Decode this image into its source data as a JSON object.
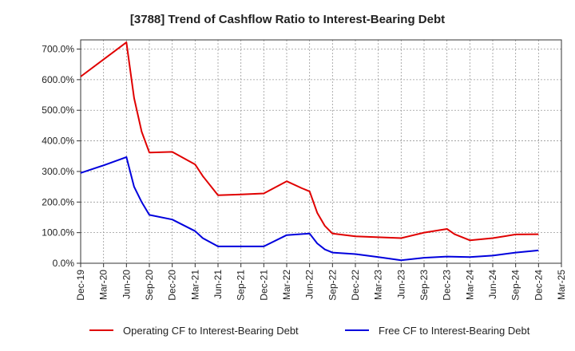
{
  "chart_data": {
    "type": "line",
    "title": "[3788]  Trend of Cashflow Ratio to Interest-Bearing Debt",
    "xlabel": "",
    "ylabel": "",
    "x_ticks": [
      "Dec-19",
      "Mar-20",
      "Jun-20",
      "Sep-20",
      "Dec-20",
      "Mar-21",
      "Jun-21",
      "Sep-21",
      "Dec-21",
      "Mar-22",
      "Jun-22",
      "Sep-22",
      "Dec-22",
      "Mar-23",
      "Jun-23",
      "Sep-23",
      "Dec-23",
      "Mar-24",
      "Jun-24",
      "Sep-24",
      "Dec-24",
      "Mar-25"
    ],
    "y_ticks": [
      "0.0%",
      "100.0%",
      "200.0%",
      "300.0%",
      "400.0%",
      "500.0%",
      "600.0%",
      "700.0%"
    ],
    "ylim": [
      0,
      730
    ],
    "grid": true,
    "legend_position": "bottom",
    "series": [
      {
        "name": "Operating CF to Interest-Bearing Debt",
        "color": "#e00000",
        "points": [
          [
            "Dec-19",
            610
          ],
          [
            "Jun-20",
            722
          ],
          [
            "Jul-20",
            540
          ],
          [
            "Aug-20",
            430
          ],
          [
            "Sep-20",
            362
          ],
          [
            "Dec-20",
            364
          ],
          [
            "Mar-21",
            323
          ],
          [
            "Apr-21",
            285
          ],
          [
            "Jun-21",
            222
          ],
          [
            "Sep-21",
            225
          ],
          [
            "Dec-21",
            228
          ],
          [
            "Mar-22",
            268
          ],
          [
            "May-22",
            245
          ],
          [
            "Jun-22",
            235
          ],
          [
            "Jul-22",
            165
          ],
          [
            "Aug-22",
            122
          ],
          [
            "Sep-22",
            97
          ],
          [
            "Dec-22",
            88
          ],
          [
            "Mar-23",
            85
          ],
          [
            "Jun-23",
            82
          ],
          [
            "Sep-23",
            100
          ],
          [
            "Dec-23",
            112
          ],
          [
            "Jan-24",
            95
          ],
          [
            "Mar-24",
            75
          ],
          [
            "Jun-24",
            82
          ],
          [
            "Sep-24",
            94
          ],
          [
            "Dec-24",
            95
          ]
        ]
      },
      {
        "name": "Free CF to Interest-Bearing Debt",
        "color": "#0000dd",
        "points": [
          [
            "Dec-19",
            295
          ],
          [
            "Mar-20",
            320
          ],
          [
            "Jun-20",
            347
          ],
          [
            "Jul-20",
            250
          ],
          [
            "Aug-20",
            200
          ],
          [
            "Sep-20",
            158
          ],
          [
            "Dec-20",
            143
          ],
          [
            "Mar-21",
            105
          ],
          [
            "Apr-21",
            82
          ],
          [
            "Jun-21",
            55
          ],
          [
            "Sep-21",
            55
          ],
          [
            "Dec-21",
            55
          ],
          [
            "Mar-22",
            92
          ],
          [
            "Jun-22",
            97
          ],
          [
            "Jul-22",
            65
          ],
          [
            "Aug-22",
            45
          ],
          [
            "Sep-22",
            35
          ],
          [
            "Dec-22",
            30
          ],
          [
            "Mar-23",
            20
          ],
          [
            "Jun-23",
            10
          ],
          [
            "Sep-23",
            18
          ],
          [
            "Dec-23",
            22
          ],
          [
            "Mar-24",
            20
          ],
          [
            "Jun-24",
            25
          ],
          [
            "Sep-24",
            35
          ],
          [
            "Dec-24",
            42
          ]
        ]
      }
    ]
  }
}
